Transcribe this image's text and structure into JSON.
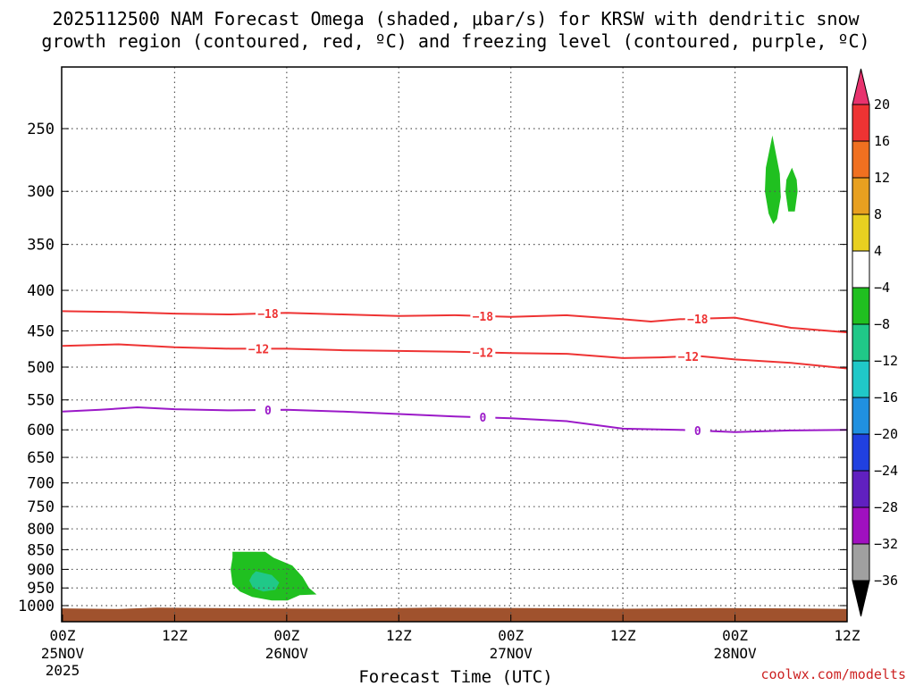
{
  "chart_data": {
    "type": "heatmap",
    "title_lines": [
      "2025112500 NAM Forecast Omega (shaded, μbar/s) for KRSW with dendritic snow",
      "growth region (contoured, red, ºC) and freezing level (contoured, purple, ºC)"
    ],
    "xlabel": "Forecast Time (UTC)",
    "credit": "coolwx.com/modelts",
    "x_hours_range": [
      0,
      84
    ],
    "y_pressure_range": [
      1000,
      200
    ],
    "y_ticks": [
      250,
      300,
      350,
      400,
      450,
      500,
      550,
      600,
      650,
      700,
      750,
      800,
      850,
      900,
      950,
      1000
    ],
    "x_ticks": [
      {
        "hour": 0,
        "line1": "00Z",
        "line2": "25NOV",
        "line3": "2025"
      },
      {
        "hour": 12,
        "line1": "12Z",
        "line2": "",
        "line3": ""
      },
      {
        "hour": 24,
        "line1": "00Z",
        "line2": "26NOV",
        "line3": ""
      },
      {
        "hour": 36,
        "line1": "12Z",
        "line2": "",
        "line3": ""
      },
      {
        "hour": 48,
        "line1": "00Z",
        "line2": "27NOV",
        "line3": ""
      },
      {
        "hour": 60,
        "line1": "12Z",
        "line2": "",
        "line3": ""
      },
      {
        "hour": 72,
        "line1": "00Z",
        "line2": "28NOV",
        "line3": ""
      },
      {
        "hour": 84,
        "line1": "12Z",
        "line2": "",
        "line3": ""
      }
    ],
    "colorbar": {
      "ticks": [
        "20",
        "16",
        "12",
        "8",
        "4",
        "−4",
        "−8",
        "−12",
        "−16",
        "−20",
        "−24",
        "−28",
        "−32",
        "−36"
      ],
      "colors": [
        "#e8336e",
        "#ee3333",
        "#f07020",
        "#e8a020",
        "#e8d020",
        "#ffffff",
        "#20c020",
        "#20c888",
        "#20c8c8",
        "#2090e0",
        "#2040e0",
        "#6020c0",
        "#a010c0",
        "#a0a0a0",
        "#000000"
      ],
      "bands": [
        {
          "range": "> 20",
          "color": "#e8336e"
        },
        {
          "range": "16 to 20",
          "color": "#ee3333"
        },
        {
          "range": "12 to 16",
          "color": "#f07020"
        },
        {
          "range": "8 to 12",
          "color": "#e8a020"
        },
        {
          "range": "4 to 8",
          "color": "#e8d020"
        },
        {
          "range": "-4 to 4",
          "color": "#ffffff"
        },
        {
          "range": "-8 to -4",
          "color": "#20c020"
        },
        {
          "range": "-12 to -8",
          "color": "#20c888"
        },
        {
          "range": "-16 to -12",
          "color": "#20c8c8"
        },
        {
          "range": "-20 to -16",
          "color": "#2090e0"
        },
        {
          "range": "-24 to -20",
          "color": "#2040e0"
        },
        {
          "range": "-28 to -24",
          "color": "#6020c0"
        },
        {
          "range": "-32 to -28",
          "color": "#a010c0"
        },
        {
          "range": "-36 to -32",
          "color": "#a0a0a0"
        },
        {
          "range": "< -36",
          "color": "#000000"
        }
      ]
    },
    "contours": [
      {
        "name": "dgz-minus18",
        "label": "−18",
        "color": "#ee3333",
        "hours": [
          0,
          6,
          12,
          18,
          24,
          30,
          36,
          42,
          48,
          54,
          60,
          63,
          66,
          72,
          78,
          84
        ],
        "pressures": [
          425,
          426,
          428,
          429,
          427,
          429,
          431,
          430,
          432,
          430,
          435,
          438,
          435,
          433,
          446,
          452
        ],
        "label_hours": [
          22,
          45,
          68
        ]
      },
      {
        "name": "dgz-minus12",
        "label": "−12",
        "color": "#ee3333",
        "hours": [
          0,
          6,
          12,
          18,
          24,
          30,
          36,
          42,
          48,
          54,
          60,
          64,
          68,
          72,
          78,
          84
        ],
        "pressures": [
          470,
          468,
          472,
          474,
          474,
          476,
          477,
          478,
          480,
          481,
          487,
          486,
          484,
          489,
          494,
          502
        ],
        "label_hours": [
          21,
          45,
          67
        ]
      },
      {
        "name": "freezing-level",
        "label": "0",
        "color": "#9b19c8",
        "hours": [
          0,
          4,
          8,
          12,
          18,
          24,
          30,
          36,
          42,
          48,
          54,
          60,
          66,
          72,
          78,
          84
        ],
        "pressures": [
          569,
          566,
          562,
          565,
          567,
          566,
          569,
          573,
          577,
          580,
          585,
          598,
          600,
          604,
          601,
          600
        ],
        "label_hours": [
          22,
          45,
          68
        ]
      }
    ],
    "omega_regions": [
      {
        "name": "omega-low-green",
        "color": "#20c020",
        "points": [
          [
            18.2,
            855
          ],
          [
            21.7,
            855
          ],
          [
            22.6,
            870
          ],
          [
            24.6,
            890
          ],
          [
            25.7,
            920
          ],
          [
            26.4,
            950
          ],
          [
            27.2,
            968
          ],
          [
            25.4,
            970
          ],
          [
            24.1,
            985
          ],
          [
            22.4,
            985
          ],
          [
            20.3,
            975
          ],
          [
            19.0,
            960
          ],
          [
            18.2,
            940
          ],
          [
            18.0,
            900
          ],
          [
            18.2,
            870
          ]
        ]
      },
      {
        "name": "omega-low-teal",
        "color": "#20c888",
        "points": [
          [
            20.7,
            905
          ],
          [
            22.4,
            915
          ],
          [
            23.2,
            935
          ],
          [
            22.8,
            955
          ],
          [
            21.5,
            960
          ],
          [
            20.4,
            950
          ],
          [
            20.0,
            930
          ],
          [
            20.3,
            915
          ]
        ]
      },
      {
        "name": "omega-upper-green-a",
        "color": "#20c020",
        "points": [
          [
            76.0,
            255
          ],
          [
            76.8,
            285
          ],
          [
            76.9,
            305
          ],
          [
            76.5,
            325
          ],
          [
            76.1,
            330
          ],
          [
            75.6,
            320
          ],
          [
            75.2,
            300
          ],
          [
            75.3,
            280
          ]
        ]
      },
      {
        "name": "omega-upper-green-b",
        "color": "#20c020",
        "points": [
          [
            78.1,
            280
          ],
          [
            78.6,
            290
          ],
          [
            78.7,
            300
          ],
          [
            78.4,
            318
          ],
          [
            77.7,
            318
          ],
          [
            77.4,
            300
          ],
          [
            77.5,
            290
          ]
        ]
      }
    ],
    "ground_color": "#a0522d"
  }
}
